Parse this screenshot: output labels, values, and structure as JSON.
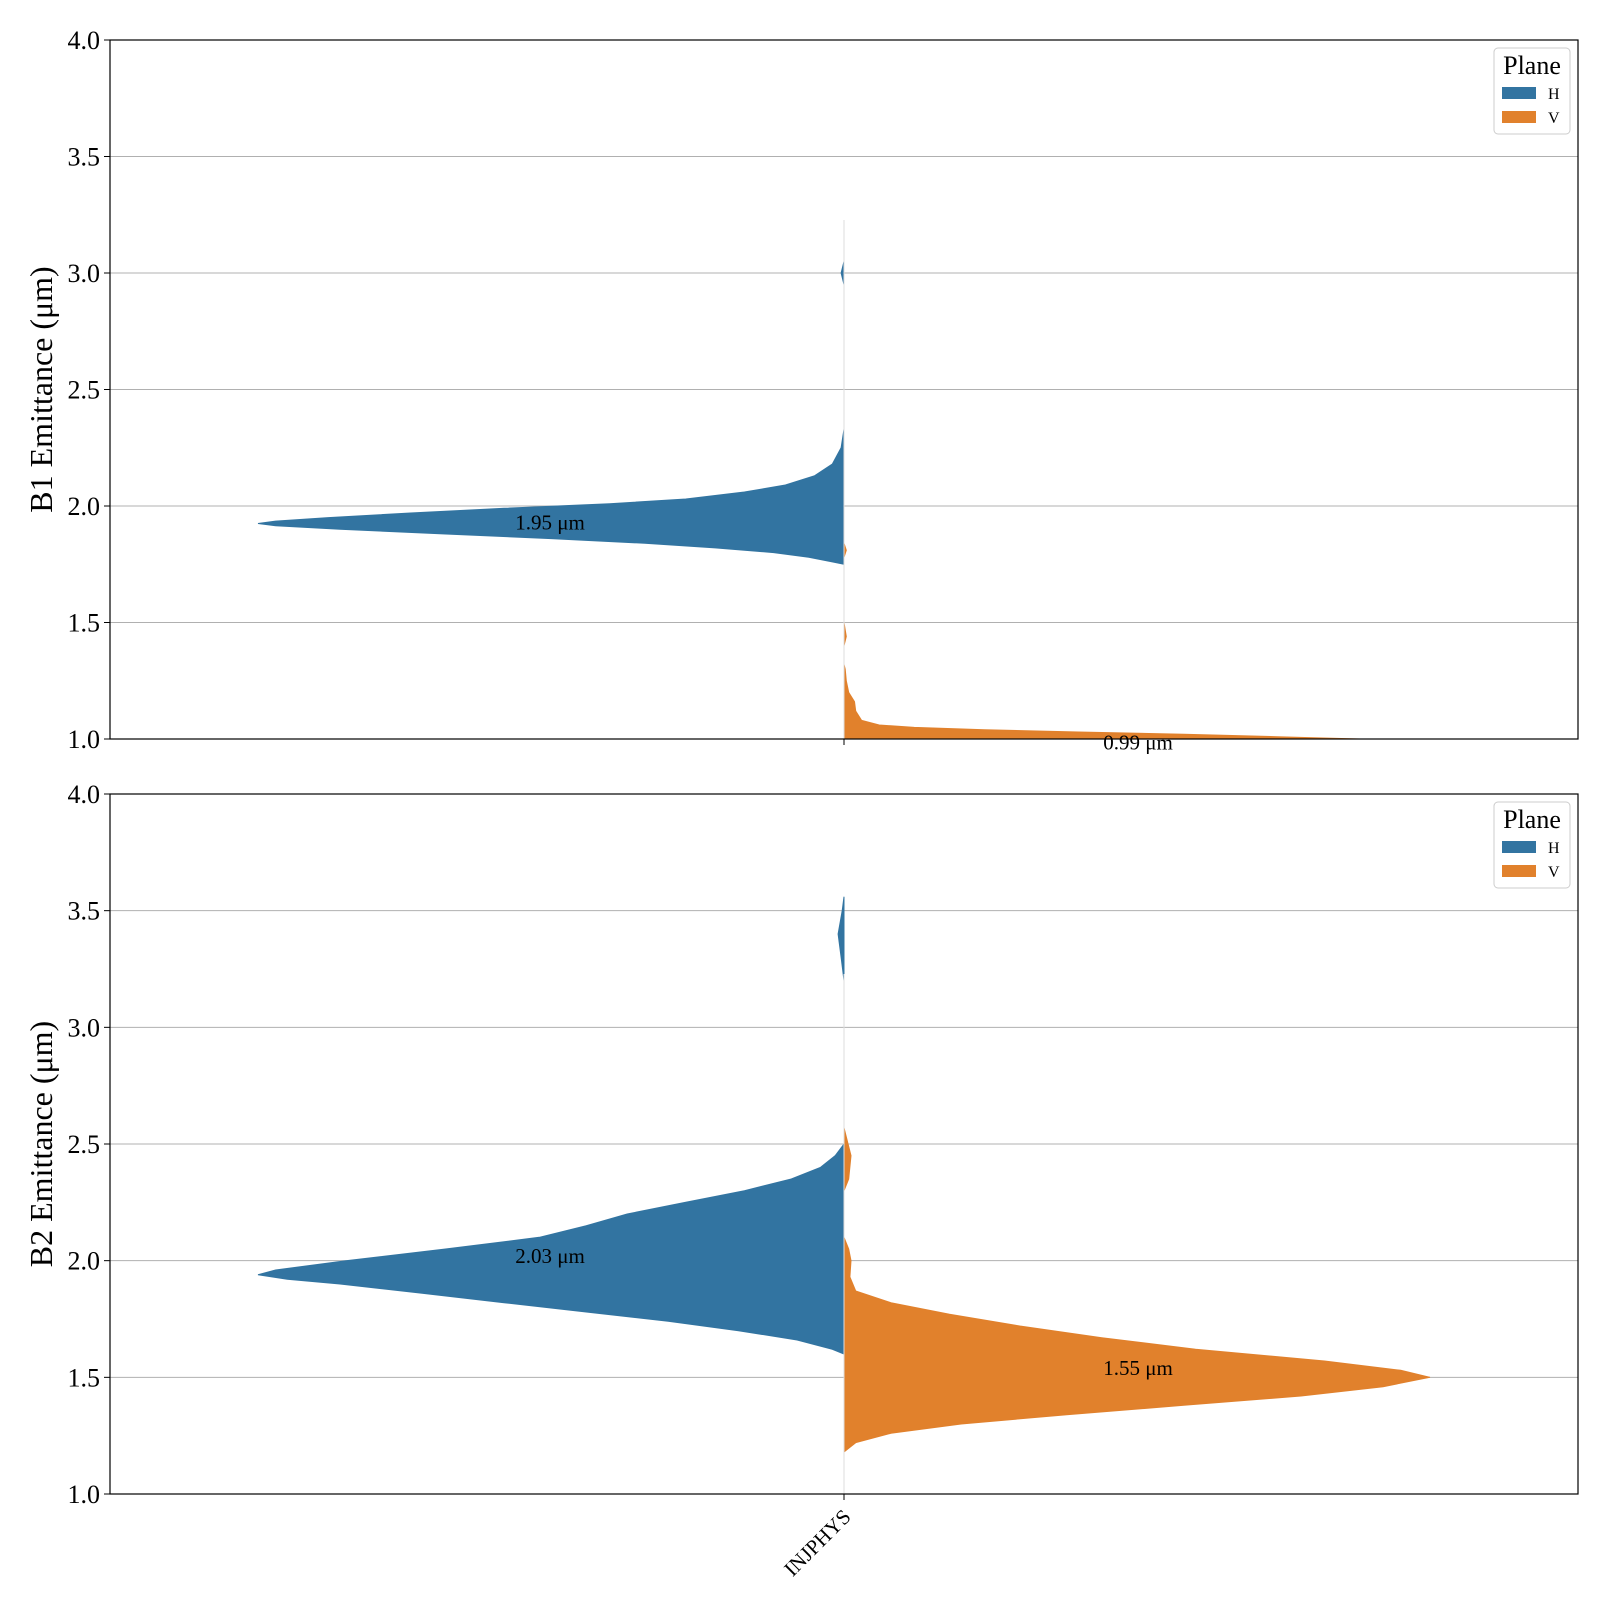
{
  "chart_data": [
    {
      "type": "violin",
      "ylabel": "B1 Emittance (μm)",
      "ylim": [
        1.0,
        4.0
      ],
      "yticks": [
        "1.0",
        "1.5",
        "2.0",
        "2.5",
        "3.0",
        "3.5",
        "4.0"
      ],
      "categories": [
        "INJPHYS"
      ],
      "grid": "horizontal",
      "legend": {
        "title": "Plane",
        "position": "top-right",
        "entries": [
          "H",
          "V"
        ]
      },
      "series": [
        {
          "name": "H",
          "side": "left",
          "color": "#3274a1",
          "median_label": "1.95 μm",
          "profile": [
            [
              1.75,
              0.0
            ],
            [
              1.76,
              0.02
            ],
            [
              1.78,
              0.06
            ],
            [
              1.8,
              0.12
            ],
            [
              1.82,
              0.22
            ],
            [
              1.84,
              0.34
            ],
            [
              1.86,
              0.5
            ],
            [
              1.88,
              0.68
            ],
            [
              1.9,
              0.86
            ],
            [
              1.915,
              0.97
            ],
            [
              1.925,
              1.0
            ],
            [
              1.935,
              0.97
            ],
            [
              1.95,
              0.88
            ],
            [
              1.97,
              0.74
            ],
            [
              1.99,
              0.58
            ],
            [
              2.01,
              0.4
            ],
            [
              2.03,
              0.27
            ],
            [
              2.06,
              0.17
            ],
            [
              2.09,
              0.1
            ],
            [
              2.13,
              0.05
            ],
            [
              2.18,
              0.02
            ],
            [
              2.25,
              0.005
            ],
            [
              2.33,
              0.0
            ]
          ],
          "tail": [
            [
              2.95,
              0.0
            ],
            [
              3.0,
              0.005
            ],
            [
              3.05,
              0.0
            ],
            [
              3.12,
              0.0
            ]
          ]
        },
        {
          "name": "V",
          "side": "right",
          "color": "#e1812c",
          "median_label": "0.99 μm",
          "profile": [
            [
              1.0,
              0.88
            ],
            [
              1.01,
              0.74
            ],
            [
              1.02,
              0.58
            ],
            [
              1.03,
              0.4
            ],
            [
              1.04,
              0.24
            ],
            [
              1.05,
              0.12
            ],
            [
              1.06,
              0.06
            ],
            [
              1.08,
              0.03
            ],
            [
              1.12,
              0.02
            ],
            [
              1.16,
              0.018
            ],
            [
              1.2,
              0.008
            ],
            [
              1.25,
              0.004
            ],
            [
              1.3,
              0.002
            ],
            [
              1.32,
              0.0
            ]
          ],
          "tail": [
            [
              1.4,
              0.0
            ],
            [
              1.44,
              0.004
            ],
            [
              1.5,
              0.0
            ]
          ],
          "tail2": [
            [
              1.78,
              0.0
            ],
            [
              1.81,
              0.004
            ],
            [
              1.84,
              0.0
            ]
          ]
        }
      ]
    },
    {
      "type": "violin",
      "ylabel": "B2 Emittance (μm)",
      "ylim": [
        1.0,
        4.0
      ],
      "yticks": [
        "1.0",
        "1.5",
        "2.0",
        "2.5",
        "3.0",
        "3.5",
        "4.0"
      ],
      "categories": [
        "INJPHYS"
      ],
      "grid": "horizontal",
      "legend": {
        "title": "Plane",
        "position": "top-right",
        "entries": [
          "H",
          "V"
        ]
      },
      "series": [
        {
          "name": "H",
          "side": "left",
          "color": "#3274a1",
          "median_label": "2.03 μm",
          "profile": [
            [
              1.6,
              0.0
            ],
            [
              1.62,
              0.02
            ],
            [
              1.66,
              0.08
            ],
            [
              1.7,
              0.18
            ],
            [
              1.74,
              0.3
            ],
            [
              1.78,
              0.44
            ],
            [
              1.82,
              0.58
            ],
            [
              1.86,
              0.72
            ],
            [
              1.9,
              0.86
            ],
            [
              1.92,
              0.95
            ],
            [
              1.94,
              1.0
            ],
            [
              1.96,
              0.97
            ],
            [
              2.0,
              0.85
            ],
            [
              2.05,
              0.68
            ],
            [
              2.1,
              0.52
            ],
            [
              2.15,
              0.44
            ],
            [
              2.2,
              0.37
            ],
            [
              2.25,
              0.27
            ],
            [
              2.3,
              0.17
            ],
            [
              2.35,
              0.09
            ],
            [
              2.4,
              0.04
            ],
            [
              2.45,
              0.015
            ],
            [
              2.5,
              0.0
            ]
          ],
          "tail": [
            [
              3.2,
              0.0
            ],
            [
              3.3,
              0.005
            ],
            [
              3.4,
              0.01
            ],
            [
              3.5,
              0.003
            ],
            [
              3.56,
              0.0
            ]
          ]
        },
        {
          "name": "V",
          "side": "right",
          "color": "#e1812c",
          "median_label": "1.55 μm",
          "profile": [
            [
              1.18,
              0.0
            ],
            [
              1.22,
              0.02
            ],
            [
              1.26,
              0.08
            ],
            [
              1.3,
              0.2
            ],
            [
              1.34,
              0.38
            ],
            [
              1.38,
              0.58
            ],
            [
              1.42,
              0.78
            ],
            [
              1.46,
              0.92
            ],
            [
              1.5,
              1.0
            ],
            [
              1.53,
              0.95
            ],
            [
              1.57,
              0.82
            ],
            [
              1.62,
              0.6
            ],
            [
              1.67,
              0.44
            ],
            [
              1.72,
              0.3
            ],
            [
              1.77,
              0.18
            ],
            [
              1.82,
              0.08
            ],
            [
              1.87,
              0.02
            ],
            [
              1.93,
              0.01
            ],
            [
              2.0,
              0.012
            ],
            [
              2.05,
              0.008
            ],
            [
              2.1,
              0.0
            ]
          ],
          "tail": [
            [
              2.3,
              0.0
            ],
            [
              2.35,
              0.008
            ],
            [
              2.45,
              0.012
            ],
            [
              2.52,
              0.005
            ],
            [
              2.57,
              0.0
            ]
          ]
        }
      ]
    }
  ]
}
